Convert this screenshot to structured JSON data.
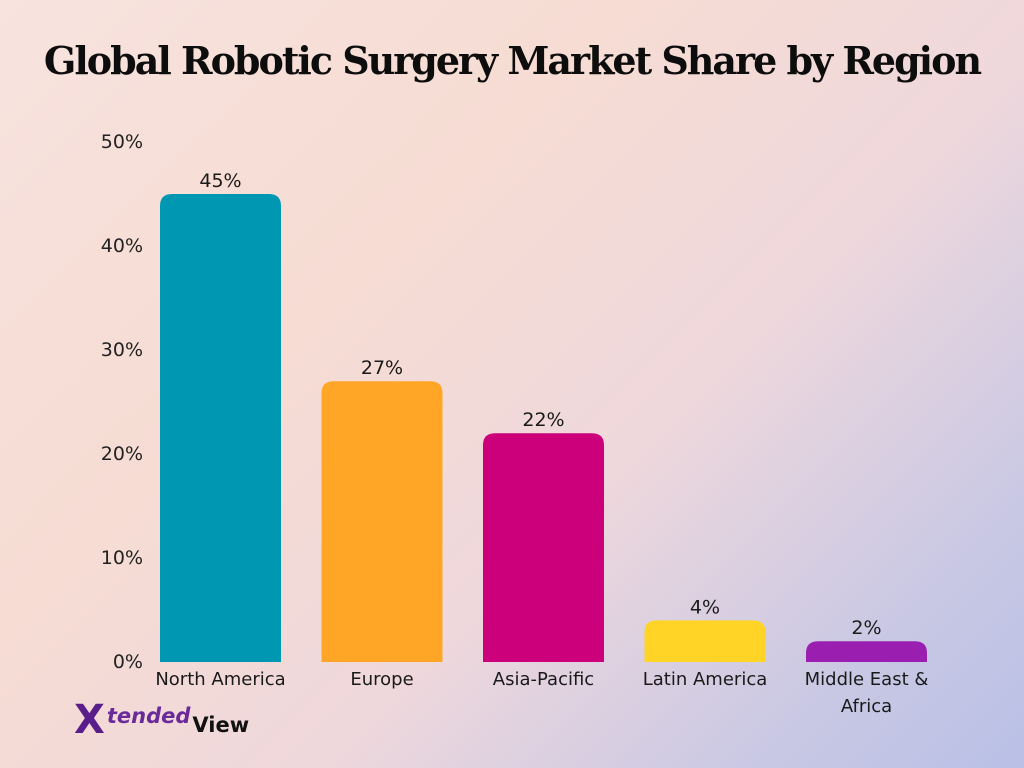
{
  "chart_data": {
    "type": "bar",
    "title": "Global Robotic Surgery Market Share by Region",
    "categories": [
      "North America",
      "Europe",
      "Asia-Pacific",
      "Latin America",
      "Middle East & Africa"
    ],
    "category_lines": [
      [
        "North America"
      ],
      [
        "Europe"
      ],
      [
        "Asia-Pacific"
      ],
      [
        "Latin America"
      ],
      [
        "Middle East &",
        "Africa"
      ]
    ],
    "values": [
      45,
      27,
      22,
      4,
      2
    ],
    "value_labels": [
      "45%",
      "27%",
      "22%",
      "4%",
      "2%"
    ],
    "colors": [
      "#0097b2",
      "#ffa627",
      "#cc007a",
      "#ffd426",
      "#9a1fb0"
    ],
    "ylim": [
      0,
      50
    ],
    "yticks": [
      0,
      10,
      20,
      30,
      40,
      50
    ],
    "ytick_labels": [
      "0%",
      "10%",
      "20%",
      "30%",
      "40%",
      "50%"
    ],
    "xlabel": "",
    "ylabel": "",
    "grid": false,
    "legend": false
  },
  "logo": {
    "mark": "X",
    "word_top": "tended",
    "word_bottom": "View"
  }
}
